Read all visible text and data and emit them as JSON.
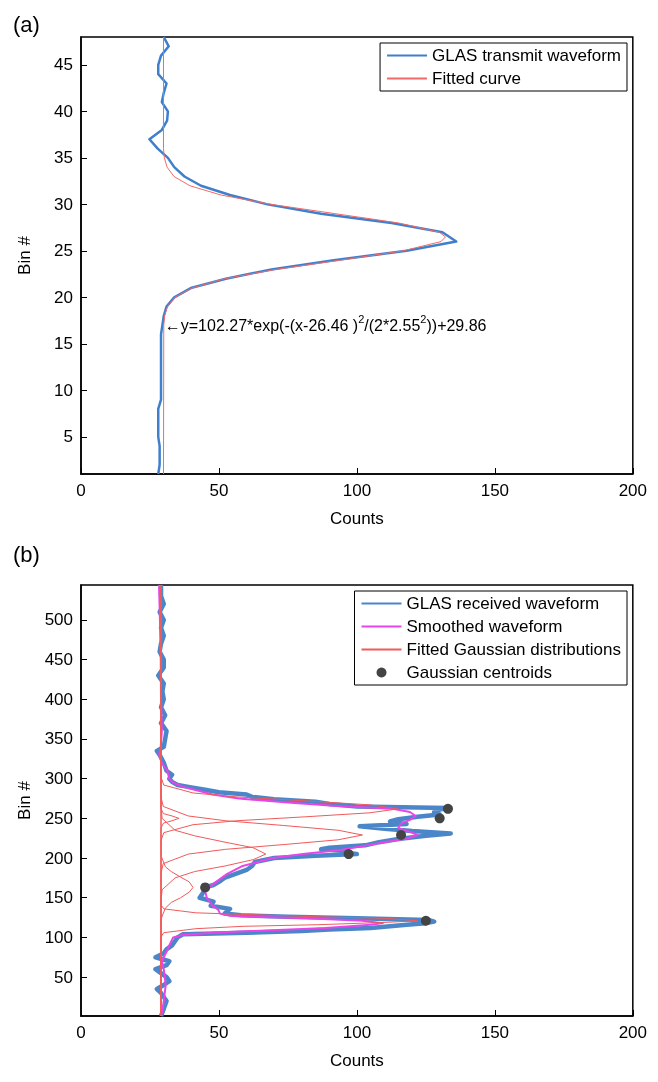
{
  "chart_data": [
    {
      "type": "line",
      "title": "(a)",
      "xlabel": "Counts",
      "ylabel": "Bin #",
      "xlim": [
        0,
        200
      ],
      "ylim": [
        1,
        48
      ],
      "xticks": [
        0,
        50,
        100,
        150,
        200
      ],
      "yticks": [
        5,
        10,
        15,
        20,
        25,
        30,
        35,
        40,
        45
      ],
      "legend": "top right",
      "annotations": [
        {
          "text": "←y=102.27*exp(-(x-26.46 )$^{2}$/(2*2.55$^{2}$))+29.86",
          "x": 30,
          "y": 17
        }
      ],
      "series": [
        {
          "name": "GLAS transmit waveform",
          "color": "#3f7fcc",
          "x": [
            28,
            28.5,
            28.5,
            28.5,
            28,
            28,
            28,
            28,
            29,
            29,
            29,
            29,
            29,
            29,
            29,
            29,
            29.5,
            30,
            31,
            33.8,
            39.8,
            52.5,
            69,
            91.6,
            118,
            136,
            131,
            112.6,
            87,
            67.6,
            54,
            43.5,
            37.5,
            33.8,
            31.5,
            27.8,
            24.8,
            29.3,
            31.2,
            31.5,
            29.3,
            30,
            31,
            28,
            28,
            29,
            31.8,
            30
          ],
          "values": [
            1,
            2,
            3,
            4,
            5,
            6,
            7,
            8,
            9,
            10,
            11,
            12,
            13,
            14,
            15,
            16,
            17,
            18,
            19,
            20,
            21,
            22,
            23,
            24,
            25,
            26,
            27,
            28,
            29,
            30,
            31,
            32,
            33,
            34,
            35,
            36,
            37,
            38,
            39,
            40,
            41,
            42,
            43,
            44,
            45,
            46,
            47,
            48
          ]
        },
        {
          "name": "Fitted curve",
          "color": "#f06a6a",
          "x": [
            29.9,
            30.0,
            30.3,
            31.3,
            34.0,
            40.2,
            52.0,
            70.6,
            94.1,
            116.7,
            130.5,
            132.1,
            129.9,
            115.1,
            92.1,
            68.9,
            50.8,
            39.5,
            33.7,
            31.2,
            30.2,
            29.9,
            29.9
          ],
          "values": [
            1,
            17,
            18,
            19,
            20,
            21,
            22,
            23,
            24,
            25,
            26,
            26.5,
            27,
            28,
            29,
            30,
            31,
            32,
            33,
            34,
            35,
            36,
            48
          ]
        }
      ]
    },
    {
      "type": "line",
      "title": "(b)",
      "xlabel": "Counts",
      "ylabel": "Bin #",
      "xlim": [
        0,
        200
      ],
      "ylim": [
        1,
        544
      ],
      "xticks": [
        0,
        50,
        100,
        150,
        200
      ],
      "yticks": [
        50,
        100,
        150,
        200,
        250,
        300,
        350,
        400,
        450,
        500
      ],
      "legend": "top right",
      "series": [
        {
          "name": "GLAS received waveform",
          "color": "#4a86c8",
          "x": [
            29,
            30,
            31,
            29,
            27.5,
            30,
            32,
            31,
            29,
            27,
            31,
            32,
            27,
            30,
            31,
            33,
            34,
            35,
            37,
            60,
            80,
            90,
            105,
            112,
            118,
            125,
            128,
            126,
            100,
            75,
            58,
            52,
            53,
            54,
            47,
            48,
            43,
            44,
            45,
            45,
            48,
            50,
            52,
            56,
            60,
            62,
            63,
            70,
            85,
            100,
            95,
            97,
            87,
            90,
            103,
            108,
            115,
            125,
            134,
            120,
            110,
            101,
            118,
            112,
            115,
            122,
            130,
            128,
            130,
            133,
            100,
            90,
            85,
            70,
            62,
            60,
            50,
            45,
            40,
            35,
            33,
            32,
            33,
            31,
            30,
            28.5,
            27.5,
            30,
            30.5,
            31,
            29,
            30.5,
            29,
            30,
            29.5,
            30,
            28,
            30,
            30,
            28.5,
            29,
            30,
            29,
            30,
            28.5,
            30,
            29,
            29
          ],
          "values": [
            1,
            10,
            20,
            30,
            35,
            40,
            45,
            50,
            55,
            60,
            65,
            70,
            75,
            80,
            85,
            90,
            95,
            100,
            104,
            106,
            108,
            110,
            112,
            114,
            116,
            118,
            120,
            122,
            124,
            126,
            128,
            130,
            133,
            136,
            140,
            145,
            150,
            155,
            160,
            163,
            166,
            170,
            175,
            180,
            185,
            190,
            195,
            200,
            203,
            205,
            207,
            209,
            211,
            213,
            216,
            220,
            224,
            228,
            231,
            234,
            237,
            240,
            243,
            246,
            249,
            252,
            255,
            258,
            261,
            263,
            265,
            268,
            271,
            274,
            277,
            280,
            283,
            286,
            289,
            292,
            296,
            300,
            305,
            310,
            320,
            330,
            335,
            340,
            350,
            360,
            370,
            380,
            390,
            400,
            410,
            420,
            430,
            440,
            450,
            460,
            470,
            480,
            490,
            500,
            510,
            520,
            530,
            544
          ]
        },
        {
          "name": "Smoothed waveform",
          "color": "#e845e8",
          "x": [
            29.3,
            30,
            30.7,
            30,
            29.3,
            30.7,
            32,
            33.4,
            36.8,
            47.7,
            61.3,
            88.6,
            105,
            109.4,
            102,
            81.7,
            54.5,
            50.4,
            49.7,
            47.7,
            45.6,
            45,
            46.3,
            49,
            53,
            58.6,
            69.5,
            80.4,
            94,
            102,
            110,
            118.5,
            122,
            119.2,
            115,
            115.8,
            119.2,
            121.3,
            119.2,
            113,
            91.3,
            75,
            57.2,
            47.7,
            42.2,
            36.8,
            33.4,
            32,
            31.3,
            29.3,
            28.3,
            28.9,
            29.3,
            29,
            28.9,
            28.6,
            28.3
          ],
          "values": [
            3,
            20,
            40,
            60,
            70,
            80,
            90,
            100,
            103,
            106,
            108,
            112,
            116,
            118,
            121,
            124,
            127,
            130,
            135,
            140,
            150,
            158,
            163,
            170,
            180,
            190,
            200,
            205,
            210,
            215,
            220,
            225,
            229,
            233,
            238,
            243,
            248,
            253,
            258,
            262,
            266,
            270,
            275,
            280,
            285,
            290,
            295,
            300,
            310,
            320,
            330,
            340,
            360,
            400,
            450,
            500,
            544
          ]
        },
        {
          "name": "Fitted Gaussian distributions",
          "color": "#f05a5a",
          "x": [
            29,
            29,
            30,
            40.6,
            56.5,
            81.5,
            104.7,
            115,
            104.7,
            81.5,
            56.5,
            40.6,
            30,
            29,
            29
          ],
          "values": [
            1,
            222,
            232,
            242,
            247,
            252,
            257,
            262,
            267,
            272,
            277,
            282,
            292,
            302,
            544
          ]
        },
        {
          "color": "#f05a5a",
          "x": [
            29,
            29,
            29.9,
            33,
            35.5,
            33,
            29.9,
            29,
            29
          ],
          "values": [
            1,
            238,
            244,
            247,
            250,
            253,
            256,
            262,
            544
          ]
        },
        {
          "color": "#f05a5a",
          "x": [
            29,
            29,
            29.8,
            38.9,
            52.4,
            73.5,
            93.2,
            102,
            93.2,
            73.5,
            52.4,
            38.9,
            29.8,
            29,
            29
          ],
          "values": [
            1,
            181,
            193,
            205,
            211,
            217,
            223,
            229,
            235,
            241,
            247,
            253,
            265,
            277,
            544
          ]
        },
        {
          "color": "#f05a5a",
          "x": [
            29,
            29,
            29.4,
            34.1,
            41.2,
            52.2,
            62.4,
            67,
            62.4,
            52.2,
            41.2,
            34.1,
            29.4,
            29,
            29
          ],
          "values": [
            1,
            145,
            160,
            175,
            183,
            190,
            198,
            205,
            213,
            220,
            228,
            235,
            250,
            265,
            544
          ]
        },
        {
          "color": "#f05a5a",
          "x": [
            29,
            29,
            29.1,
            30.6,
            32.7,
            36.1,
            39.2,
            40.6,
            39.2,
            36.1,
            32.7,
            30.6,
            29.1,
            29,
            29
          ],
          "values": [
            1,
            111,
            124,
            137,
            144,
            150,
            157,
            163,
            170,
            176,
            183,
            189,
            202,
            215,
            544
          ]
        },
        {
          "color": "#f05a5a",
          "x": [
            29,
            29,
            30,
            41.6,
            58.8,
            85.7,
            110.8,
            122,
            110.8,
            85.7,
            58.8,
            41.6,
            30,
            29,
            29
          ],
          "values": [
            1,
            101,
            106,
            111,
            114,
            116,
            119,
            121,
            124,
            126,
            129,
            131,
            136,
            141,
            544
          ]
        },
        {
          "name": "Gaussian centroids",
          "type": "scatter",
          "marker": "circle",
          "color": "#444444",
          "x": [
            133,
            130,
            116,
            97,
            45,
            125
          ],
          "values": [
            262,
            250,
            229,
            205,
            163,
            121
          ]
        }
      ]
    }
  ]
}
